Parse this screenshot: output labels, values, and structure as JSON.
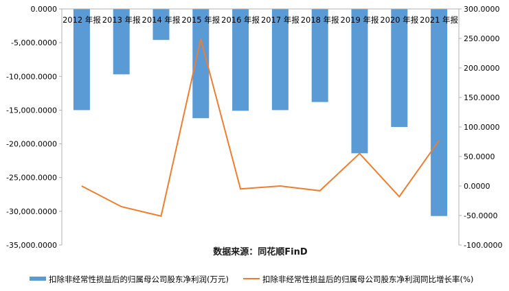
{
  "chart_data": {
    "type": "bar+line",
    "title": "",
    "source_note": "数据来源：同花顺FinD",
    "categories": [
      "2012 年报",
      "2013 年报",
      "2014 年报",
      "2015 年报",
      "2016 年报",
      "2017 年报",
      "2018 年报",
      "2019 年报",
      "2020 年报",
      "2021 年报"
    ],
    "series": [
      {
        "name": "扣除非经常性损益后的归属母公司股东净利润(万元)",
        "type": "bar",
        "axis": "left",
        "color": "#5B9BD5",
        "values": [
          -15000,
          -9700,
          -4600,
          -16200,
          -15100,
          -15000,
          -13800,
          -21400,
          -17500,
          -30700
        ]
      },
      {
        "name": "扣除非经常性损益后的归属母公司股东净利润同比增长率(%)",
        "type": "line",
        "axis": "right",
        "color": "#ED7D31",
        "values": [
          0,
          -35,
          -51,
          249,
          -5,
          0,
          -8,
          55,
          -18,
          77
        ]
      }
    ],
    "y_left": {
      "range": [
        -35000,
        0
      ],
      "ticks": [
        "0.0000",
        "-5,000.0000",
        "-10,000.0000",
        "-15,000.0000",
        "-20,000.0000",
        "-25,000.0000",
        "-30,000.0000",
        "-35,000.0000"
      ]
    },
    "y_right": {
      "range": [
        -100,
        300
      ],
      "ticks": [
        "300.0000",
        "250.0000",
        "200.0000",
        "150.0000",
        "100.0000",
        "50.0000",
        "0.0000",
        "-50.0000",
        "-100.0000"
      ]
    },
    "grid": false,
    "legend_position": "bottom"
  }
}
